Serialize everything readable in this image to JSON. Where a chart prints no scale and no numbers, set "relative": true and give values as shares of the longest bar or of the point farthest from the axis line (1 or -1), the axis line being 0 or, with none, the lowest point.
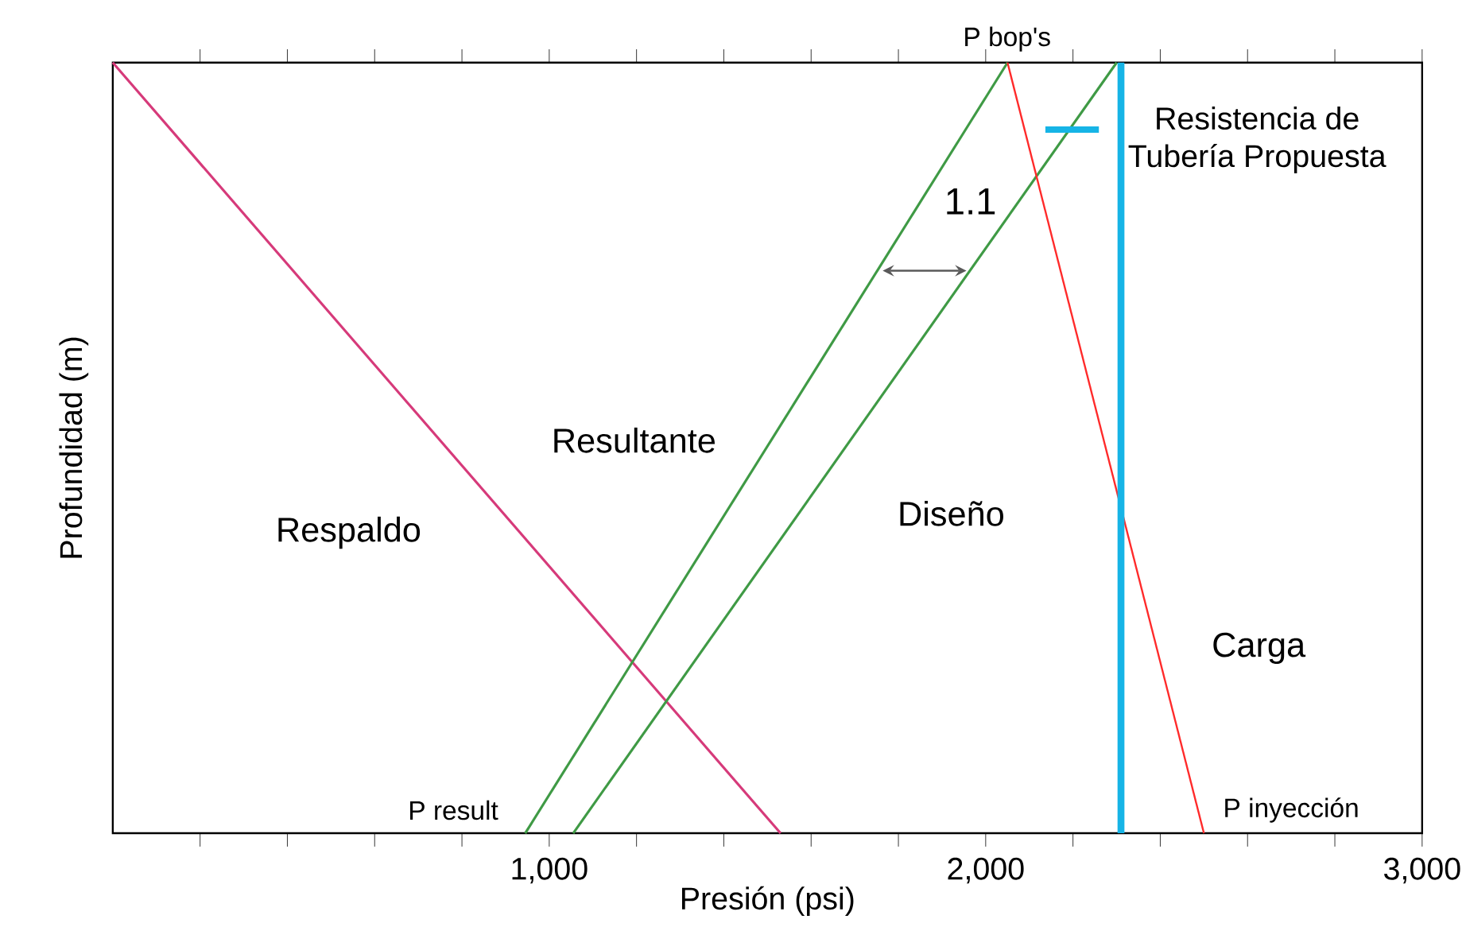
{
  "chart_data": {
    "type": "line",
    "xlabel": "Presión (psi)",
    "ylabel": "Profundidad (m)",
    "relative": true,
    "xlim": [
      0,
      3000
    ],
    "xticks": [
      {
        "value": 200,
        "label": null
      },
      {
        "value": 400,
        "label": null
      },
      {
        "value": 600,
        "label": null
      },
      {
        "value": 800,
        "label": null
      },
      {
        "value": 1000,
        "label": "1,000"
      },
      {
        "value": 1200,
        "label": null
      },
      {
        "value": 1400,
        "label": null
      },
      {
        "value": 1600,
        "label": null
      },
      {
        "value": 1800,
        "label": null
      },
      {
        "value": 2000,
        "label": "2,000"
      },
      {
        "value": 2200,
        "label": null
      },
      {
        "value": 2400,
        "label": null
      },
      {
        "value": 2600,
        "label": null
      },
      {
        "value": 2800,
        "label": null
      },
      {
        "value": 3000,
        "label": "3,000"
      }
    ],
    "series": [
      {
        "name": "Respaldo",
        "color": "#d63a7a",
        "x": [
          0,
          1530
        ],
        "values": [
          1,
          0
        ]
      },
      {
        "name": "Resultante",
        "color": "#3f9a45",
        "x": [
          945,
          2050
        ],
        "values": [
          0,
          1
        ]
      },
      {
        "name": "Diseño",
        "color": "#3f9a45",
        "x": [
          1055,
          2300
        ],
        "values": [
          0,
          1
        ]
      },
      {
        "name": "Carga",
        "color": "#ff2a2a",
        "x": [
          2050,
          2500
        ],
        "values": [
          1,
          0
        ]
      },
      {
        "name": "Resistencia de Tubería Propuesta",
        "color": "#16b4e6",
        "x": [
          2310,
          2310
        ],
        "values": [
          0,
          1
        ]
      }
    ],
    "legend": "top right",
    "annotations": [
      "P bop's",
      "P result",
      "P inyección",
      "1.1"
    ]
  }
}
